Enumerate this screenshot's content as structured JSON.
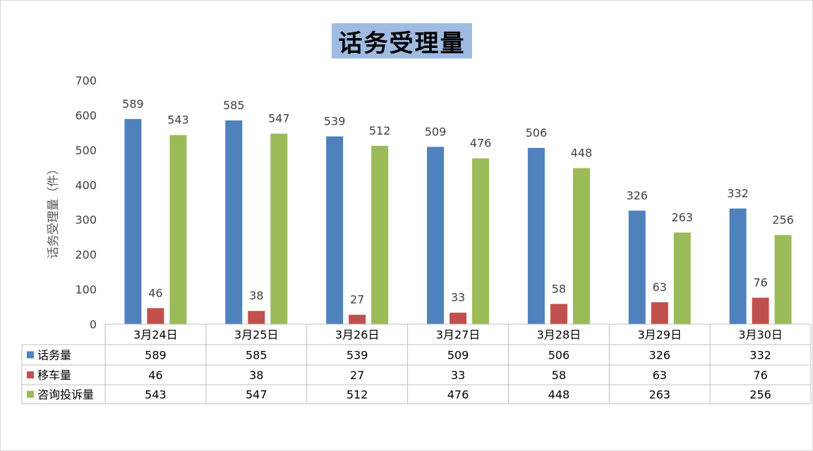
{
  "chart_data": {
    "type": "bar",
    "title": "话务受理量",
    "ylabel": "话务受理量（件）",
    "xlabel": "",
    "ylim": [
      0,
      700
    ],
    "yticks": [
      0,
      100,
      200,
      300,
      400,
      500,
      600,
      700
    ],
    "categories": [
      "3月24日",
      "3月25日",
      "3月26日",
      "3月27日",
      "3月28日",
      "3月29日",
      "3月30日"
    ],
    "series": [
      {
        "name": "话务量",
        "color": "#4f81bd",
        "values": [
          589,
          585,
          539,
          509,
          506,
          326,
          332
        ]
      },
      {
        "name": "移车量",
        "color": "#c0504d",
        "values": [
          46,
          38,
          27,
          33,
          58,
          63,
          76
        ]
      },
      {
        "name": "咨询投诉量",
        "color": "#9bbb59",
        "values": [
          543,
          547,
          512,
          476,
          448,
          263,
          256
        ]
      }
    ],
    "grid": false,
    "legend": "data-table"
  }
}
